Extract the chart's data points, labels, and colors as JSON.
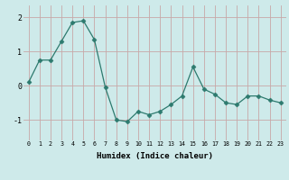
{
  "x": [
    0,
    1,
    2,
    3,
    4,
    5,
    6,
    7,
    8,
    9,
    10,
    11,
    12,
    13,
    14,
    15,
    16,
    17,
    18,
    19,
    20,
    21,
    22,
    23
  ],
  "y": [
    0.1,
    0.75,
    0.75,
    1.3,
    1.85,
    1.9,
    1.35,
    -0.05,
    -1.0,
    -1.05,
    -0.75,
    -0.85,
    -0.75,
    -0.55,
    -0.3,
    0.55,
    -0.1,
    -0.25,
    -0.5,
    -0.55,
    -0.3,
    -0.3,
    -0.42,
    -0.5
  ],
  "line_color": "#2d7a6e",
  "marker": "D",
  "marker_size": 2.5,
  "bg_color": "#ceeaea",
  "grid_color": "#c8a8a8",
  "xlabel": "Humidex (Indice chaleur)",
  "yticks": [
    -1,
    0,
    1,
    2
  ],
  "xticks": [
    0,
    1,
    2,
    3,
    4,
    5,
    6,
    7,
    8,
    9,
    10,
    11,
    12,
    13,
    14,
    15,
    16,
    17,
    18,
    19,
    20,
    21,
    22,
    23
  ],
  "xlim": [
    -0.5,
    23.5
  ],
  "ylim": [
    -1.6,
    2.35
  ]
}
